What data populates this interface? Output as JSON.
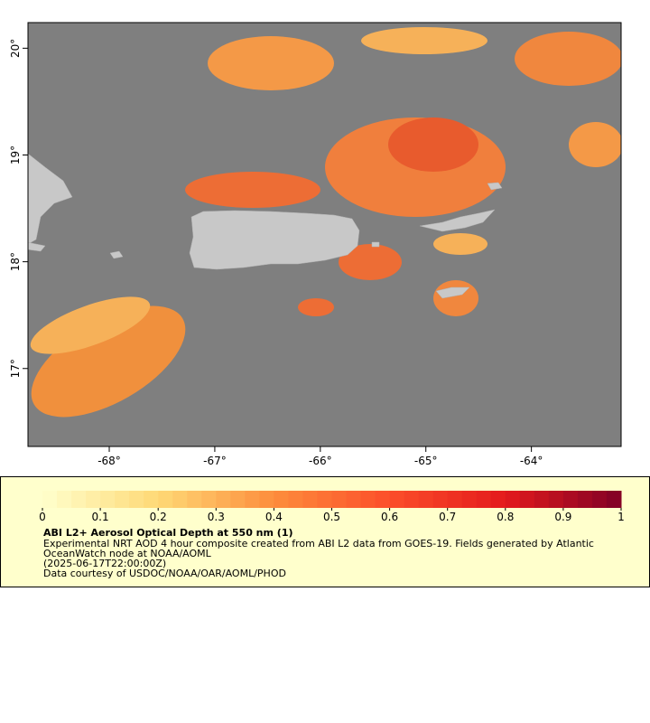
{
  "map": {
    "xlim": [
      -68.77,
      -63.15
    ],
    "ylim": [
      16.27,
      20.24
    ],
    "xticks": [
      {
        "value": -68,
        "label": "-68°"
      },
      {
        "value": -67,
        "label": "-67°"
      },
      {
        "value": -66,
        "label": "-66°"
      },
      {
        "value": -65,
        "label": "-65°"
      },
      {
        "value": -64,
        "label": "-64°"
      }
    ],
    "yticks": [
      {
        "value": 17,
        "label": "17°"
      },
      {
        "value": 18,
        "label": "18°"
      },
      {
        "value": 19,
        "label": "19°"
      },
      {
        "value": 20,
        "label": "20°"
      }
    ]
  },
  "colorbar": {
    "title": "ABI L2+ Aerosol Optical Depth at 550 nm (1)",
    "lim": [
      0,
      1
    ],
    "ticks": [
      0,
      0.1,
      0.2,
      0.3,
      0.4,
      0.5,
      0.6,
      0.7,
      0.8,
      0.9,
      1
    ],
    "description": "Experimental NRT AOD 4 hour composite created from ABI L2 data from GOES-19. Fields generated by Atlantic",
    "description_2": "OceanWatch node at NOAA/AOML",
    "time": "(2025-06-17T22:00:00Z)",
    "credit": "Data courtesy of USDOC/NOAA/OAR/AOML/PHOD"
  }
}
